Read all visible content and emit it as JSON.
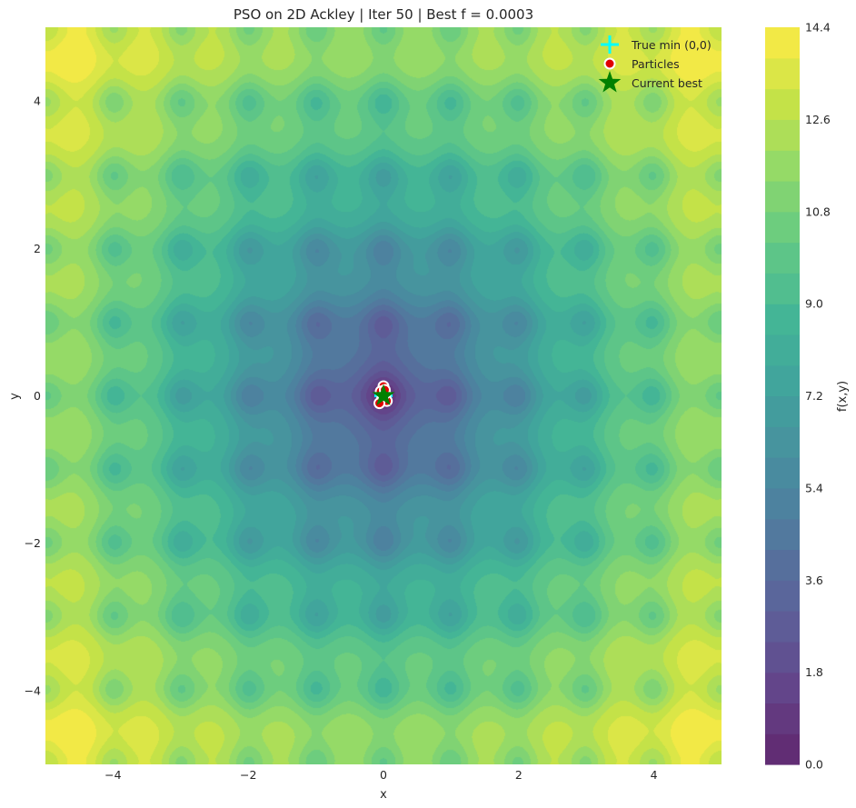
{
  "chart_data": {
    "type": "heatmap",
    "function": "Ackley",
    "title": "PSO on 2D Ackley | Iter 50 | Best f = 0.0003",
    "xlabel": "x",
    "ylabel": "y",
    "xlim": [
      -5,
      5
    ],
    "ylim": [
      -5,
      5
    ],
    "x_ticks": [
      -4,
      -2,
      0,
      2,
      4
    ],
    "y_ticks": [
      -4,
      -2,
      0,
      2,
      4
    ],
    "x_tick_labels": [
      "−4",
      "−2",
      "0",
      "2",
      "4"
    ],
    "y_tick_labels": [
      "−4",
      "−2",
      "0",
      "2",
      "4"
    ],
    "colorbar": {
      "label": "f(x,y)",
      "min": 0.0,
      "max": 14.4,
      "ticks": [
        0.0,
        1.8,
        3.6,
        5.4,
        7.2,
        9.0,
        10.8,
        12.6,
        14.4
      ],
      "tick_labels": [
        "0.0",
        "1.8",
        "3.6",
        "5.4",
        "7.2",
        "9.0",
        "10.8",
        "12.6",
        "14.4"
      ],
      "levels": 24,
      "colormap": "viridis"
    },
    "true_min": {
      "x": 0,
      "y": 0,
      "label": "True min (0,0)",
      "color": "#00ffff"
    },
    "particles": {
      "label": "Particles",
      "color": "#e00000",
      "edge": "#ffffff",
      "points": [
        [
          0.0,
          0.13
        ],
        [
          -0.04,
          0.06
        ],
        [
          0.03,
          0.02
        ],
        [
          -0.02,
          -0.04
        ],
        [
          0.05,
          -0.07
        ],
        [
          0.0,
          0.0
        ],
        [
          -0.06,
          -0.1
        ],
        [
          0.02,
          0.08
        ]
      ]
    },
    "current_best": {
      "x": 0.0,
      "y": -0.0,
      "label": "Current best",
      "color": "#008000"
    },
    "legend": {
      "position": "top-right"
    }
  }
}
